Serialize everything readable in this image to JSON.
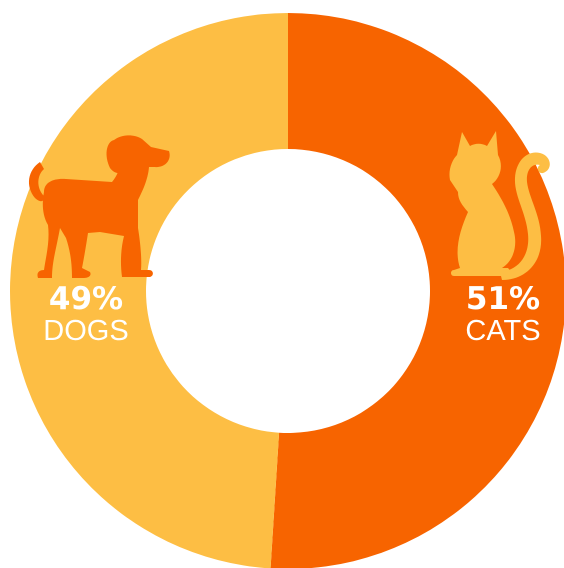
{
  "chart_data": {
    "type": "pie",
    "subtype": "donut",
    "categories": [
      "CATS",
      "DOGS"
    ],
    "values": [
      51,
      49
    ],
    "labels": [
      {
        "percent": "51%",
        "name": "CATS",
        "icon": "cat-icon"
      },
      {
        "percent": "49%",
        "name": "DOGS",
        "icon": "dog-icon"
      }
    ],
    "colors": [
      "#F76400",
      "#FDBE44"
    ],
    "start": "top",
    "direction": "clockwise"
  }
}
